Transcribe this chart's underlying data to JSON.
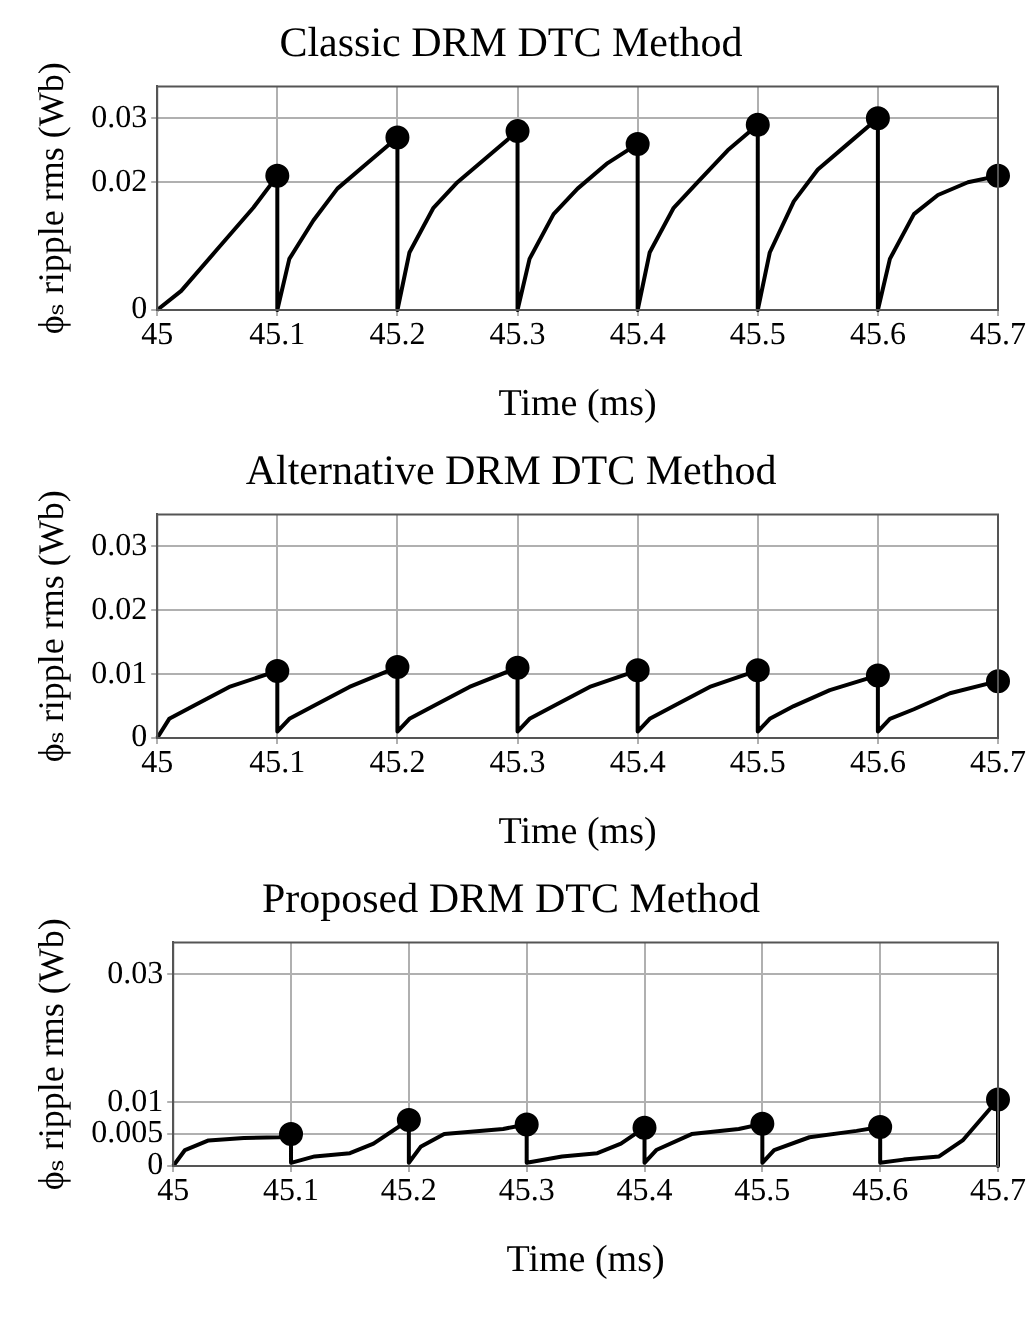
{
  "chart_data": [
    {
      "type": "line",
      "title": "Classic DRM DTC Method",
      "xlabel": "Time (ms)",
      "ylabel": "ϕₛ ripple rms (Wb)",
      "xlim": [
        45,
        45.7
      ],
      "xticks": [
        45,
        45.1,
        45.2,
        45.3,
        45.4,
        45.5,
        45.6,
        45.7
      ],
      "ylim": [
        0,
        0.035
      ],
      "yticks": [
        0,
        0.02,
        0.03
      ],
      "grid": true,
      "series": [
        {
          "color": "#000000",
          "line_style": "solid",
          "marker": "none",
          "x": [
            45,
            45.02,
            45.05,
            45.08,
            45.1,
            45.1,
            45.11,
            45.13,
            45.15,
            45.175,
            45.2,
            45.2,
            45.21,
            45.23,
            45.25,
            45.275,
            45.3,
            45.3,
            45.31,
            45.33,
            45.35,
            45.375,
            45.4,
            45.4,
            45.41,
            45.43,
            45.45,
            45.475,
            45.5,
            45.5,
            45.51,
            45.53,
            45.55,
            45.575,
            45.6,
            45.6,
            45.61,
            45.63,
            45.65,
            45.675,
            45.7
          ],
          "values": [
            0,
            0.003,
            0.0095,
            0.016,
            0.021,
            0,
            0.008,
            0.014,
            0.019,
            0.023,
            0.027,
            0,
            0.009,
            0.016,
            0.02,
            0.024,
            0.028,
            0,
            0.008,
            0.015,
            0.019,
            0.023,
            0.026,
            0,
            0.009,
            0.016,
            0.02,
            0.025,
            0.029,
            0,
            0.009,
            0.017,
            0.022,
            0.026,
            0.03,
            0,
            0.008,
            0.015,
            0.018,
            0.02,
            0.021
          ]
        },
        {
          "type": "scatter",
          "color": "#000000",
          "marker": "circle",
          "x": [
            45.1,
            45.2,
            45.3,
            45.4,
            45.5,
            45.6,
            45.7
          ],
          "values": [
            0.021,
            0.027,
            0.028,
            0.026,
            0.029,
            0.03,
            0.021
          ]
        }
      ]
    },
    {
      "type": "line",
      "title": "Alternative DRM DTC Method",
      "xlabel": "Time (ms)",
      "ylabel": "ϕₛ ripple rms (Wb)",
      "xlim": [
        45,
        45.7
      ],
      "xticks": [
        45,
        45.1,
        45.2,
        45.3,
        45.4,
        45.5,
        45.6,
        45.7
      ],
      "ylim": [
        0,
        0.035
      ],
      "yticks": [
        0,
        0.01,
        0.02,
        0.03
      ],
      "grid": true,
      "series": [
        {
          "color": "#000000",
          "line_style": "solid",
          "marker": "none",
          "x": [
            45,
            45.01,
            45.03,
            45.06,
            45.1,
            45.1,
            45.11,
            45.13,
            45.16,
            45.2,
            45.2,
            45.21,
            45.23,
            45.26,
            45.3,
            45.3,
            45.31,
            45.33,
            45.36,
            45.4,
            45.4,
            45.41,
            45.43,
            45.46,
            45.5,
            45.5,
            45.51,
            45.53,
            45.56,
            45.6,
            45.6,
            45.61,
            45.63,
            45.66,
            45.7
          ],
          "values": [
            0,
            0.003,
            0.005,
            0.008,
            0.0105,
            0.001,
            0.003,
            0.005,
            0.008,
            0.0111,
            0.001,
            0.003,
            0.005,
            0.008,
            0.011,
            0.001,
            0.003,
            0.005,
            0.008,
            0.0106,
            0.001,
            0.003,
            0.005,
            0.008,
            0.0106,
            0.001,
            0.003,
            0.005,
            0.0075,
            0.0098,
            0.001,
            0.003,
            0.0045,
            0.007,
            0.0089
          ]
        },
        {
          "type": "scatter",
          "color": "#000000",
          "marker": "circle",
          "x": [
            45.1,
            45.2,
            45.3,
            45.4,
            45.5,
            45.6,
            45.7
          ],
          "values": [
            0.0105,
            0.0111,
            0.011,
            0.0106,
            0.0106,
            0.0098,
            0.0089
          ]
        }
      ]
    },
    {
      "type": "line",
      "title": "Proposed DRM DTC Method",
      "xlabel": "Time (ms)",
      "ylabel": "ϕₛ ripple rms (Wb)",
      "xlim": [
        45,
        45.7
      ],
      "xticks": [
        45,
        45.1,
        45.2,
        45.3,
        45.4,
        45.5,
        45.6,
        45.7
      ],
      "ylim": [
        0,
        0.035
      ],
      "yticks": [
        0,
        0.005,
        0.01,
        0.03
      ],
      "grid": true,
      "series": [
        {
          "color": "#000000",
          "line_style": "solid",
          "marker": "none",
          "x": [
            45,
            45.01,
            45.03,
            45.06,
            45.09,
            45.1,
            45.1,
            45.12,
            45.15,
            45.17,
            45.2,
            45.2,
            45.21,
            45.23,
            45.28,
            45.3,
            45.3,
            45.33,
            45.36,
            45.38,
            45.4,
            45.4,
            45.41,
            45.44,
            45.48,
            45.5,
            45.5,
            45.51,
            45.54,
            45.58,
            45.6,
            45.6,
            45.62,
            45.65,
            45.67,
            45.7,
            45.7
          ],
          "values": [
            0,
            0.0025,
            0.004,
            0.0044,
            0.0045,
            0.005,
            0.0005,
            0.0015,
            0.002,
            0.0035,
            0.0072,
            0.0005,
            0.003,
            0.005,
            0.0058,
            0.0065,
            0.0005,
            0.0015,
            0.002,
            0.0035,
            0.006,
            0.0005,
            0.0025,
            0.005,
            0.0058,
            0.0066,
            0.0005,
            0.0025,
            0.0045,
            0.0055,
            0.0061,
            0.0005,
            0.001,
            0.0015,
            0.004,
            0.0104,
            0
          ]
        },
        {
          "type": "scatter",
          "color": "#000000",
          "marker": "circle",
          "x": [
            45.1,
            45.2,
            45.3,
            45.4,
            45.5,
            45.6,
            45.7
          ],
          "values": [
            0.005,
            0.0072,
            0.0065,
            0.006,
            0.0066,
            0.0061,
            0.0104
          ]
        }
      ]
    }
  ]
}
